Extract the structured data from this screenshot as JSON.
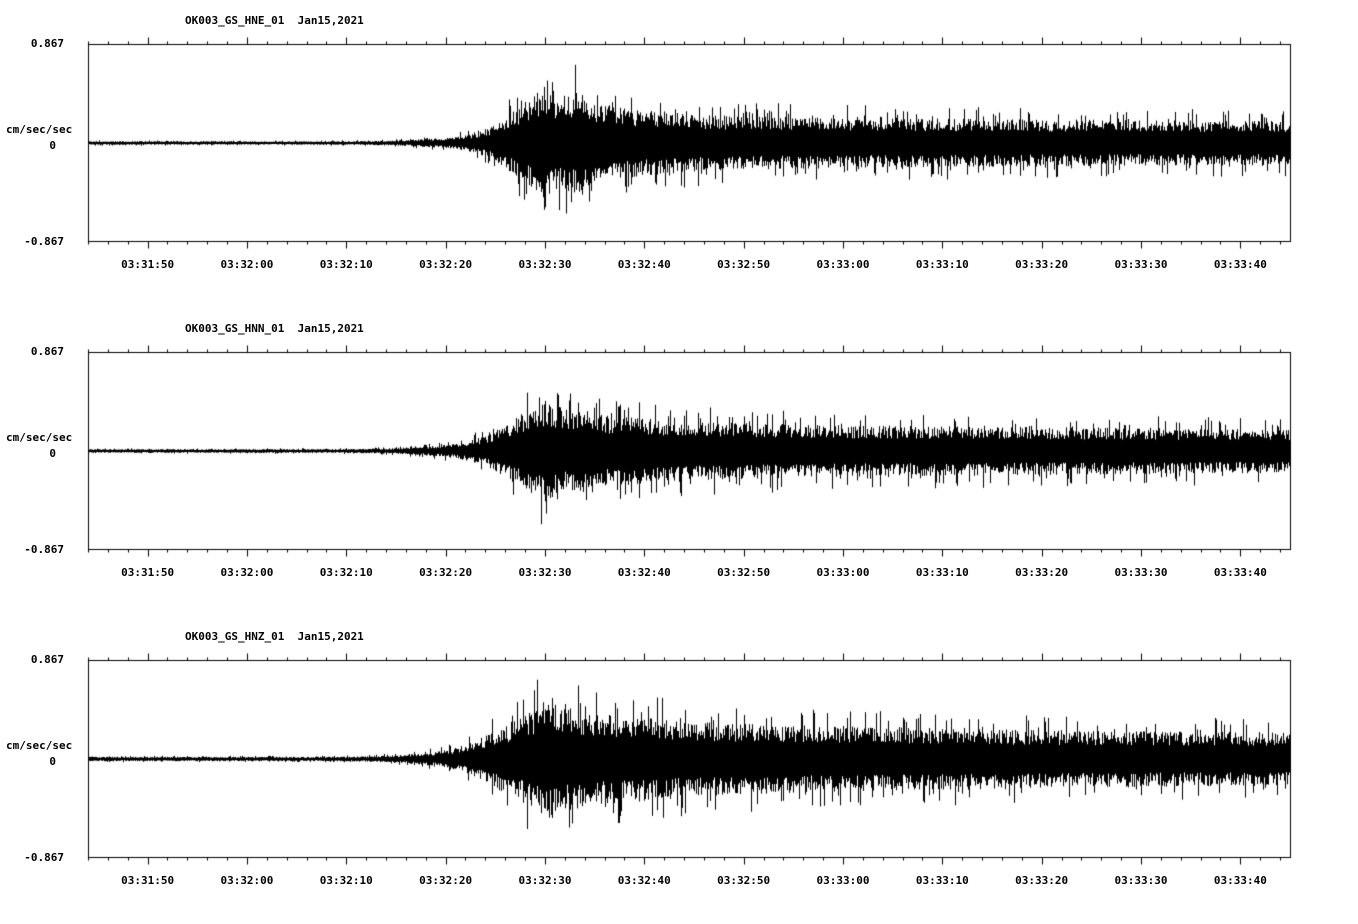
{
  "page": {
    "background": "#ffffff",
    "trace_color": "#000000"
  },
  "y_axis": {
    "top_label": "0.867",
    "zero_label": "0",
    "bottom_label": "-0.867",
    "units_label": "cm/sec/sec"
  },
  "time_axis": {
    "start_time": "03:31:44",
    "duration_seconds": 121,
    "first_tick_offset_seconds": 6,
    "major_tick_seconds": 10,
    "minor_tick_seconds": 2,
    "tick_labels": [
      "03:31:50",
      "03:32:00",
      "03:32:10",
      "03:32:20",
      "03:32:30",
      "03:32:40",
      "03:32:50",
      "03:33:00",
      "03:33:10",
      "03:33:20",
      "03:33:30",
      "03:33:40"
    ]
  },
  "chart_data": [
    {
      "type": "line",
      "title": "OK003_GS_HNE_01  Jan15,2021",
      "station_channel": "OK003_GS_HNE_01",
      "date": "Jan15,2021",
      "ylabel": "cm/sec/sec",
      "ylim": [
        -0.867,
        0.867
      ],
      "y_tick_labels": [
        "0.867",
        "0",
        "-0.867"
      ],
      "x_start_time": "03:31:44",
      "x_range_seconds": [
        0,
        121
      ],
      "x_tick_labels": [
        "03:31:50",
        "03:32:00",
        "03:32:10",
        "03:32:20",
        "03:32:30",
        "03:32:40",
        "03:32:50",
        "03:33:00",
        "03:33:10",
        "03:33:20",
        "03:33:30",
        "03:33:40"
      ],
      "envelope_description": "approximate peak amplitude (cm/sec/sec) vs seconds after 03:31:44; seismic event onset ~03:32:20, peak ~0.8 near 03:32:30, long coda",
      "envelope": [
        [
          0,
          0.025
        ],
        [
          20,
          0.022
        ],
        [
          28,
          0.025
        ],
        [
          32,
          0.04
        ],
        [
          36,
          0.07
        ],
        [
          39,
          0.13
        ],
        [
          41,
          0.25
        ],
        [
          43,
          0.45
        ],
        [
          44.5,
          0.62
        ],
        [
          46,
          0.8
        ],
        [
          47.5,
          0.62
        ],
        [
          49,
          0.7
        ],
        [
          51,
          0.55
        ],
        [
          54,
          0.48
        ],
        [
          58,
          0.42
        ],
        [
          62,
          0.38
        ],
        [
          68,
          0.36
        ],
        [
          75,
          0.34
        ],
        [
          85,
          0.33
        ],
        [
          95,
          0.32
        ],
        [
          105,
          0.31
        ],
        [
          121,
          0.3
        ]
      ],
      "seed": 11
    },
    {
      "type": "line",
      "title": "OK003_GS_HNN_01  Jan15,2021",
      "station_channel": "OK003_GS_HNN_01",
      "date": "Jan15,2021",
      "ylabel": "cm/sec/sec",
      "ylim": [
        -0.867,
        0.867
      ],
      "y_tick_labels": [
        "0.867",
        "0",
        "-0.867"
      ],
      "x_start_time": "03:31:44",
      "x_range_seconds": [
        0,
        121
      ],
      "x_tick_labels": [
        "03:31:50",
        "03:32:00",
        "03:32:10",
        "03:32:20",
        "03:32:30",
        "03:32:40",
        "03:32:50",
        "03:33:00",
        "03:33:10",
        "03:33:20",
        "03:33:30",
        "03:33:40"
      ],
      "envelope_description": "approximate peak amplitude (cm/sec/sec) vs seconds after 03:31:44; onset ~03:32:20, peak ~0.68 near 03:32:30, long coda",
      "envelope": [
        [
          0,
          0.025
        ],
        [
          24,
          0.025
        ],
        [
          30,
          0.035
        ],
        [
          34,
          0.06
        ],
        [
          37,
          0.1
        ],
        [
          40,
          0.2
        ],
        [
          42,
          0.35
        ],
        [
          44,
          0.55
        ],
        [
          46,
          0.68
        ],
        [
          48,
          0.56
        ],
        [
          51,
          0.5
        ],
        [
          55,
          0.45
        ],
        [
          60,
          0.4
        ],
        [
          66,
          0.38
        ],
        [
          72,
          0.36
        ],
        [
          80,
          0.34
        ],
        [
          90,
          0.33
        ],
        [
          100,
          0.32
        ],
        [
          110,
          0.31
        ],
        [
          121,
          0.3
        ]
      ],
      "seed": 22
    },
    {
      "type": "line",
      "title": "OK003_GS_HNZ_01  Jan15,2021",
      "station_channel": "OK003_GS_HNZ_01",
      "date": "Jan15,2021",
      "ylabel": "cm/sec/sec",
      "ylim": [
        -0.867,
        0.867
      ],
      "y_tick_labels": [
        "0.867",
        "0",
        "-0.867"
      ],
      "x_start_time": "03:31:44",
      "x_range_seconds": [
        0,
        121
      ],
      "x_tick_labels": [
        "03:31:50",
        "03:32:00",
        "03:32:10",
        "03:32:20",
        "03:32:30",
        "03:32:40",
        "03:32:50",
        "03:33:00",
        "03:33:10",
        "03:33:20",
        "03:33:30",
        "03:33:40"
      ],
      "envelope_description": "approximate peak amplitude (cm/sec/sec) vs seconds after 03:31:44; onset ~03:32:18, peak ~0.85 near 03:32:30, strong sustained coda",
      "envelope": [
        [
          0,
          0.03
        ],
        [
          22,
          0.028
        ],
        [
          28,
          0.035
        ],
        [
          32,
          0.06
        ],
        [
          35,
          0.1
        ],
        [
          37,
          0.15
        ],
        [
          39,
          0.25
        ],
        [
          41,
          0.38
        ],
        [
          43,
          0.52
        ],
        [
          45,
          0.7
        ],
        [
          46.5,
          0.85
        ],
        [
          48,
          0.7
        ],
        [
          51,
          0.62
        ],
        [
          55,
          0.58
        ],
        [
          60,
          0.52
        ],
        [
          65,
          0.48
        ],
        [
          70,
          0.46
        ],
        [
          76,
          0.44
        ],
        [
          84,
          0.42
        ],
        [
          92,
          0.4
        ],
        [
          102,
          0.38
        ],
        [
          112,
          0.37
        ],
        [
          121,
          0.36
        ]
      ],
      "seed": 33
    }
  ]
}
